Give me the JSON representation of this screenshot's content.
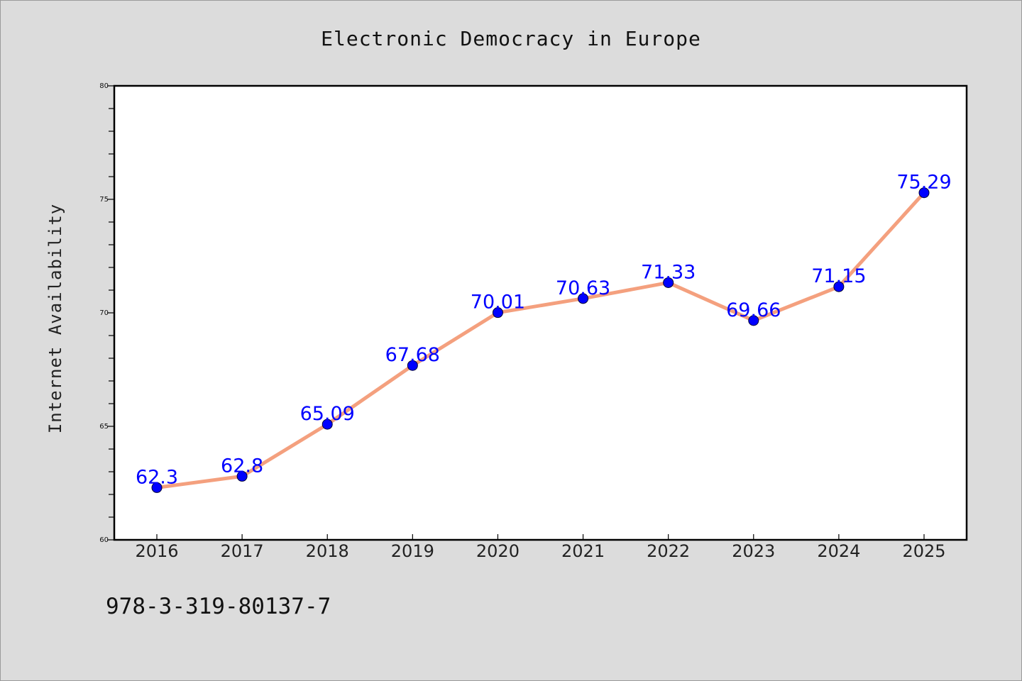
{
  "chart_data": {
    "type": "line",
    "title": "Electronic Democracy in Europe",
    "xlabel": "",
    "ylabel": "Internet Availability",
    "categories": [
      "2016",
      "2017",
      "2018",
      "2019",
      "2020",
      "2021",
      "2022",
      "2023",
      "2024",
      "2025"
    ],
    "series": [
      {
        "values": [
          62.3,
          62.8,
          65.09,
          67.68,
          70.01,
          70.63,
          71.33,
          69.66,
          71.15,
          75.29
        ],
        "data_labels": [
          "62.3",
          "62.8",
          "65.09",
          "67.68",
          "70.01",
          "70.63",
          "71.33",
          "69.66",
          "71.15",
          "75.29"
        ]
      }
    ],
    "ylim": [
      60,
      80
    ],
    "yticks": [
      "60",
      "65",
      "70",
      "75",
      "80"
    ],
    "grid": false,
    "legend": "none",
    "colors": {
      "line": "#f4a07e",
      "marker": "#0000ff",
      "data_label": "#0000ff",
      "background": "#dcdcdc",
      "plot_background": "#ffffff"
    }
  },
  "footer_text": "978-3-319-80137-7"
}
